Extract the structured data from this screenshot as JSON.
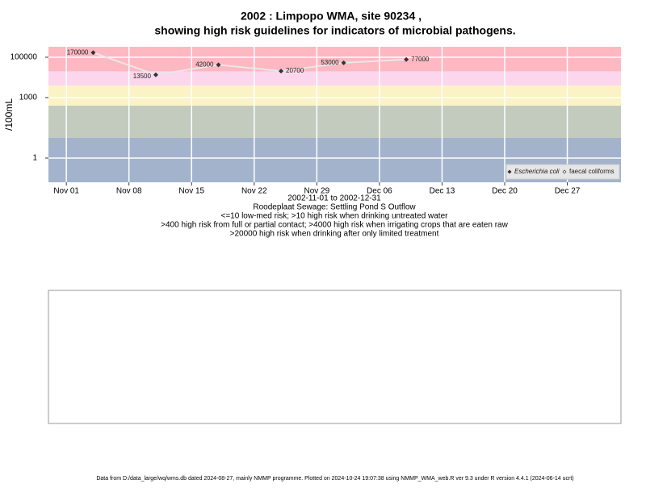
{
  "chart_data": {
    "type": "scatter-line",
    "title": [
      "2002 : Limpopo WMA, site 90234 ,",
      "showing high risk guidelines for indicators of microbial pathogens."
    ],
    "y_label": "/100mL",
    "subtitle": [
      "2002-11-01 to 2002-12-31",
      "Roodeplaat Sewage: Settling Pond S Outflow",
      "<=10 low-med risk; >10 high risk when drinking untreated water",
      ">400 high risk from full or partial contact; >4000 high risk when irrigating crops that are eaten raw",
      ">20000 high risk when drinking after only limited treatment"
    ],
    "x": [
      "2002-11-04",
      "2002-11-11",
      "2002-11-18",
      "2002-11-25",
      "2002-12-02",
      "2002-12-09"
    ],
    "series": [
      {
        "name": "Escherichia coli",
        "color": "#333333",
        "values": [
          170000,
          13500,
          42000,
          20700,
          53000,
          77000
        ]
      },
      {
        "name": "faecal coliforms",
        "color": "#333333",
        "values": [
          null,
          null,
          null,
          null,
          null,
          null
        ]
      }
    ],
    "xlim": [
      "2002-10-30",
      "2003-01-02"
    ],
    "xticks": [
      {
        "value": "2002-11-01",
        "label": "Nov 01"
      },
      {
        "value": "2002-11-08",
        "label": "Nov 08"
      },
      {
        "value": "2002-11-15",
        "label": "Nov 15"
      },
      {
        "value": "2002-11-22",
        "label": "Nov 22"
      },
      {
        "value": "2002-11-29",
        "label": "Nov 29"
      },
      {
        "value": "2002-12-06",
        "label": "Dec 06"
      },
      {
        "value": "2002-12-13",
        "label": "Dec 13"
      },
      {
        "value": "2002-12-20",
        "label": "Dec 20"
      },
      {
        "value": "2002-12-27",
        "label": "Dec 27"
      }
    ],
    "ylim": [
      0.063,
      330000
    ],
    "yticks": [
      1,
      1000,
      100000
    ],
    "y_log": true,
    "grid": true,
    "legend": "bottom-right",
    "risk_bands": [
      {
        "range": [
          null,
          10
        ],
        "color": "#a3b3cc"
      },
      {
        "range": [
          10,
          400
        ],
        "color": "#c3cbbf"
      },
      {
        "range": [
          400,
          4000
        ],
        "color": "#fbf3c6"
      },
      {
        "range": [
          4000,
          20000
        ],
        "color": "#fcd6ec"
      },
      {
        "range": [
          20000,
          null
        ],
        "color": "#fdb8c2"
      }
    ],
    "footer": "Data from D:/data_large/wq/wms.db dated 2024-08-27, mainly NMMP programme. Plotted on 2024-10-24 19:07:38 using NMMP_WMA_web.R ver 9.3 under R version 4.4.1 (2024-06-14 ucrt)"
  }
}
